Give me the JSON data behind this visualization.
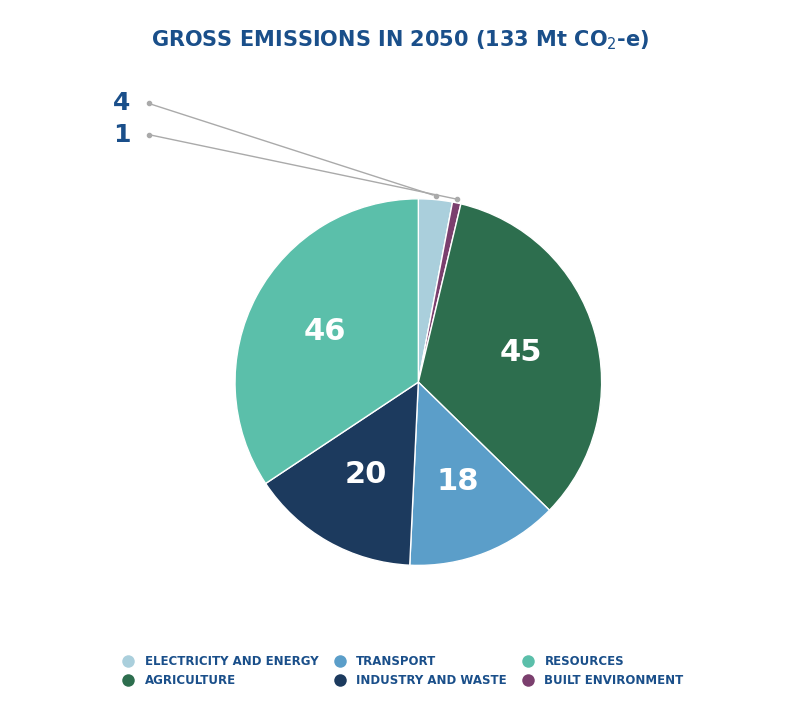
{
  "title": "GROSS EMISSIONS IN 2050 (133 Mt CO$_2$-e)",
  "sectors": [
    "Electricity and Energy",
    "Built Environment",
    "Agriculture",
    "Transport",
    "Industry and Waste",
    "Resources"
  ],
  "values": [
    4,
    1,
    45,
    18,
    20,
    46
  ],
  "colors": [
    "#aacfdc",
    "#7b3f6e",
    "#2d6e4e",
    "#5b9ec9",
    "#1c3a5e",
    "#5bbfaa"
  ],
  "label_color": "#ffffff",
  "title_color": "#1a4f8a",
  "annotation_color": "#aaaaaa",
  "background_color": "#ffffff",
  "startangle": 90,
  "legend_order": [
    "ELECTRICITY AND ENERGY",
    "AGRICULTURE",
    "TRANSPORT",
    "INDUSTRY AND WASTE",
    "RESOURCES",
    "BUILT ENVIRONMENT"
  ],
  "legend_colors": [
    "#aacfdc",
    "#2d6e4e",
    "#5b9ec9",
    "#1c3a5e",
    "#5bbfaa",
    "#7b3f6e"
  ]
}
